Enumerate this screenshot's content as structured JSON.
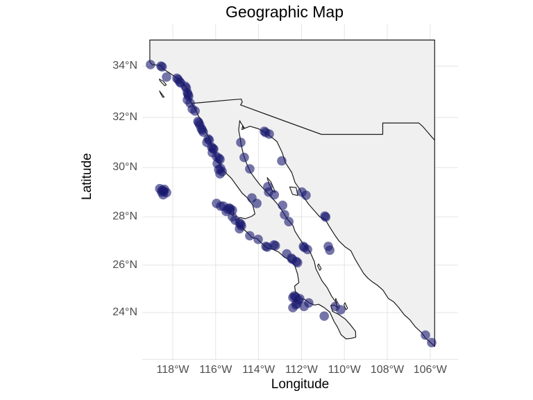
{
  "title": "Geographic Map",
  "axes": {
    "x": {
      "label": "Longitude",
      "ticks": [
        {
          "lon": -118,
          "label": "118°W"
        },
        {
          "lon": -116,
          "label": "116°W"
        },
        {
          "lon": -114,
          "label": "114°W"
        },
        {
          "lon": -112,
          "label": "112°W"
        },
        {
          "lon": -110,
          "label": "110°W"
        },
        {
          "lon": -108,
          "label": "108°W"
        },
        {
          "lon": -106,
          "label": "106°W"
        }
      ]
    },
    "y": {
      "label": "Latitude",
      "ticks": [
        {
          "lat": 34,
          "label": "34°N"
        },
        {
          "lat": 32,
          "label": "32°N"
        },
        {
          "lat": 30,
          "label": "30°N"
        },
        {
          "lat": 28,
          "label": "28°N"
        },
        {
          "lat": 26,
          "label": "26°N"
        },
        {
          "lat": 24,
          "label": "24°N"
        }
      ]
    },
    "unlabeled_gridlines": {
      "lat": [
        22
      ],
      "lon": []
    }
  },
  "style": {
    "point_color": "#191970",
    "point_opacity": 0.6,
    "point_radius": 6.8,
    "land_fill": "#f0f0f0",
    "coast_color": "#1b1b1b",
    "grid_color": "#e4e4e4",
    "tick_label_color": "#4d4d4d",
    "background": "#ffffff"
  },
  "chart_data": {
    "type": "scatter",
    "title": "Geographic Map",
    "xlabel": "Longitude",
    "ylabel": "Latitude",
    "projection": "mercator",
    "lon_range": [
      -119.4,
      -104.7
    ],
    "lat_range": [
      21.9,
      35.6
    ],
    "grid": true,
    "legend": false,
    "points_lonlat": [
      [
        -119.04,
        34.06
      ],
      [
        -118.55,
        34.0
      ],
      [
        -118.5,
        33.97
      ],
      [
        -118.29,
        33.58
      ],
      [
        -117.81,
        33.53
      ],
      [
        -117.75,
        33.48
      ],
      [
        -117.68,
        33.39
      ],
      [
        -117.63,
        33.35
      ],
      [
        -117.42,
        33.22
      ],
      [
        -117.37,
        33.15
      ],
      [
        -117.32,
        32.97
      ],
      [
        -117.29,
        32.9
      ],
      [
        -117.26,
        32.83
      ],
      [
        -117.32,
        32.69
      ],
      [
        -117.19,
        32.56
      ],
      [
        -117.09,
        32.33
      ],
      [
        -116.96,
        32.25
      ],
      [
        -116.83,
        31.84
      ],
      [
        -116.79,
        31.79
      ],
      [
        -116.74,
        31.7
      ],
      [
        -116.67,
        31.56
      ],
      [
        -116.63,
        31.5
      ],
      [
        -116.58,
        31.42
      ],
      [
        -116.35,
        31.15
      ],
      [
        -116.3,
        31.1
      ],
      [
        -116.41,
        31.01
      ],
      [
        -116.19,
        30.82
      ],
      [
        -116.13,
        30.77
      ],
      [
        -116.09,
        30.74
      ],
      [
        -116.16,
        30.6
      ],
      [
        -115.96,
        30.44
      ],
      [
        -115.85,
        30.38
      ],
      [
        -115.8,
        30.33
      ],
      [
        -115.93,
        30.16
      ],
      [
        -115.77,
        29.97
      ],
      [
        -115.7,
        29.84
      ],
      [
        -115.86,
        29.92
      ],
      [
        -115.8,
        29.75
      ],
      [
        -118.61,
        29.15
      ],
      [
        -118.39,
        29.12
      ],
      [
        -118.52,
        29.01
      ],
      [
        -118.29,
        28.99
      ],
      [
        -118.45,
        28.9
      ],
      [
        -118.5,
        29.08
      ],
      [
        -118.42,
        29.04
      ],
      [
        -115.96,
        28.55
      ],
      [
        -115.77,
        28.44
      ],
      [
        -115.64,
        28.44
      ],
      [
        -115.38,
        28.36
      ],
      [
        -115.32,
        28.33
      ],
      [
        -115.44,
        28.31
      ],
      [
        -115.22,
        28.27
      ],
      [
        -115.51,
        28.22
      ],
      [
        -115.22,
        28.0
      ],
      [
        -115.09,
        27.86
      ],
      [
        -114.89,
        27.74
      ],
      [
        -114.83,
        27.7
      ],
      [
        -114.8,
        27.62
      ],
      [
        -114.89,
        27.51
      ],
      [
        -114.41,
        27.22
      ],
      [
        -114.02,
        27.07
      ],
      [
        -113.66,
        26.78
      ],
      [
        -113.6,
        26.75
      ],
      [
        -113.28,
        26.84
      ],
      [
        -113.22,
        26.81
      ],
      [
        -112.69,
        26.47
      ],
      [
        -112.47,
        26.29
      ],
      [
        -112.42,
        26.24
      ],
      [
        -112.24,
        26.15
      ],
      [
        -112.18,
        26.1
      ],
      [
        -112.34,
        24.71
      ],
      [
        -112.28,
        24.66
      ],
      [
        -112.4,
        24.64
      ],
      [
        -112.08,
        24.59
      ],
      [
        -112.14,
        24.53
      ],
      [
        -112.21,
        24.38
      ],
      [
        -112.27,
        24.33
      ],
      [
        -111.88,
        24.26
      ],
      [
        -111.66,
        24.41
      ],
      [
        -112.4,
        24.21
      ],
      [
        -110.94,
        23.85
      ],
      [
        -110.42,
        24.26
      ],
      [
        -110.17,
        24.12
      ],
      [
        -114.83,
        31.01
      ],
      [
        -114.67,
        30.41
      ],
      [
        -114.41,
        29.95
      ],
      [
        -113.73,
        31.45
      ],
      [
        -113.67,
        31.4
      ],
      [
        -113.5,
        31.34
      ],
      [
        -113.57,
        29.23
      ],
      [
        -114.08,
        28.55
      ],
      [
        -113.53,
        29.01
      ],
      [
        -113.27,
        28.9
      ],
      [
        -112.88,
        28.47
      ],
      [
        -114.31,
        28.77
      ],
      [
        -112.92,
        30.27
      ],
      [
        -112.79,
        28.09
      ],
      [
        -112.59,
        27.8
      ],
      [
        -111.98,
        29.01
      ],
      [
        -111.79,
        28.88
      ],
      [
        -110.91,
        28.03
      ],
      [
        -110.87,
        27.99
      ],
      [
        -110.75,
        26.78
      ],
      [
        -111.91,
        26.78
      ],
      [
        -111.86,
        26.73
      ],
      [
        -111.72,
        26.65
      ],
      [
        -110.68,
        26.62
      ],
      [
        -106.22,
        23.04
      ],
      [
        -105.93,
        22.72
      ]
    ],
    "basemap": {
      "land": [
        [
          -119.07,
          35.0
        ],
        [
          -105.79,
          35.0
        ],
        [
          -105.79,
          22.55
        ],
        [
          -105.95,
          22.7
        ],
        [
          -106.2,
          22.9
        ],
        [
          -106.4,
          23.15
        ],
        [
          -106.7,
          23.4
        ],
        [
          -106.95,
          23.7
        ],
        [
          -107.2,
          23.9
        ],
        [
          -107.5,
          24.25
        ],
        [
          -107.7,
          24.45
        ],
        [
          -107.95,
          24.6
        ],
        [
          -108.2,
          24.95
        ],
        [
          -108.45,
          25.15
        ],
        [
          -108.7,
          25.3
        ],
        [
          -108.9,
          25.45
        ],
        [
          -109.1,
          25.65
        ],
        [
          -109.3,
          25.95
        ],
        [
          -109.5,
          26.25
        ],
        [
          -109.7,
          26.6
        ],
        [
          -109.95,
          26.75
        ],
        [
          -110.25,
          27.0
        ],
        [
          -110.45,
          27.25
        ],
        [
          -110.7,
          27.6
        ],
        [
          -110.9,
          27.9
        ],
        [
          -111.15,
          28.0
        ],
        [
          -111.4,
          28.25
        ],
        [
          -111.65,
          28.5
        ],
        [
          -111.9,
          28.8
        ],
        [
          -112.1,
          29.15
        ],
        [
          -112.3,
          29.4
        ],
        [
          -112.45,
          29.8
        ],
        [
          -112.75,
          30.2
        ],
        [
          -112.9,
          30.6
        ],
        [
          -113.15,
          31.05
        ],
        [
          -113.6,
          31.35
        ],
        [
          -114.0,
          31.55
        ],
        [
          -114.4,
          31.65
        ],
        [
          -114.65,
          31.57
        ],
        [
          -114.8,
          31.75
        ],
        [
          -114.88,
          31.87
        ],
        [
          -114.93,
          31.5
        ],
        [
          -114.85,
          31.15
        ],
        [
          -114.82,
          30.95
        ],
        [
          -114.7,
          30.5
        ],
        [
          -114.55,
          30.15
        ],
        [
          -114.38,
          29.82
        ],
        [
          -114.18,
          29.58
        ],
        [
          -113.95,
          29.32
        ],
        [
          -113.72,
          29.1
        ],
        [
          -113.55,
          28.95
        ],
        [
          -113.35,
          28.75
        ],
        [
          -113.1,
          28.5
        ],
        [
          -112.9,
          28.25
        ],
        [
          -112.65,
          27.9
        ],
        [
          -112.4,
          27.65
        ],
        [
          -112.3,
          27.4
        ],
        [
          -112.05,
          27.05
        ],
        [
          -111.85,
          26.8
        ],
        [
          -111.6,
          26.55
        ],
        [
          -111.4,
          26.15
        ],
        [
          -111.33,
          25.85
        ],
        [
          -111.05,
          25.35
        ],
        [
          -110.8,
          25.05
        ],
        [
          -110.6,
          24.7
        ],
        [
          -110.4,
          24.45
        ],
        [
          -110.33,
          24.22
        ],
        [
          -110.48,
          24.32
        ],
        [
          -110.63,
          24.3
        ],
        [
          -110.55,
          24.05
        ],
        [
          -110.28,
          23.93
        ],
        [
          -109.95,
          23.72
        ],
        [
          -109.72,
          23.48
        ],
        [
          -109.48,
          23.2
        ],
        [
          -109.47,
          22.95
        ],
        [
          -109.7,
          22.9
        ],
        [
          -109.92,
          22.88
        ],
        [
          -110.15,
          23.05
        ],
        [
          -110.32,
          23.38
        ],
        [
          -110.48,
          23.62
        ],
        [
          -110.68,
          24.02
        ],
        [
          -110.95,
          24.22
        ],
        [
          -111.2,
          24.35
        ],
        [
          -111.4,
          24.32
        ],
        [
          -111.65,
          24.42
        ],
        [
          -111.87,
          24.57
        ],
        [
          -112.07,
          24.57
        ],
        [
          -112.12,
          24.77
        ],
        [
          -112.28,
          24.87
        ],
        [
          -112.32,
          25.12
        ],
        [
          -112.12,
          25.27
        ],
        [
          -112.18,
          25.62
        ],
        [
          -112.32,
          26.0
        ],
        [
          -112.55,
          26.2
        ],
        [
          -112.82,
          26.35
        ],
        [
          -113.07,
          26.55
        ],
        [
          -113.32,
          26.65
        ],
        [
          -113.62,
          26.72
        ],
        [
          -113.87,
          26.92
        ],
        [
          -114.07,
          27.1
        ],
        [
          -114.32,
          27.15
        ],
        [
          -114.52,
          27.35
        ],
        [
          -114.72,
          27.5
        ],
        [
          -114.92,
          27.67
        ],
        [
          -115.07,
          27.87
        ],
        [
          -114.87,
          27.97
        ],
        [
          -114.62,
          27.92
        ],
        [
          -114.32,
          28.02
        ],
        [
          -114.17,
          28.12
        ],
        [
          -114.27,
          28.47
        ],
        [
          -114.52,
          28.77
        ],
        [
          -114.77,
          28.97
        ],
        [
          -115.02,
          29.27
        ],
        [
          -115.27,
          29.57
        ],
        [
          -115.57,
          29.82
        ],
        [
          -115.77,
          30.07
        ],
        [
          -115.97,
          30.37
        ],
        [
          -116.12,
          30.72
        ],
        [
          -116.22,
          30.97
        ],
        [
          -116.32,
          31.22
        ],
        [
          -116.57,
          31.57
        ],
        [
          -116.67,
          31.87
        ],
        [
          -116.82,
          32.07
        ],
        [
          -116.92,
          32.27
        ],
        [
          -117.06,
          32.47
        ],
        [
          -117.13,
          32.55
        ],
        [
          -117.25,
          32.72
        ],
        [
          -117.29,
          32.87
        ],
        [
          -117.33,
          33.12
        ],
        [
          -117.52,
          33.32
        ],
        [
          -117.77,
          33.52
        ],
        [
          -117.97,
          33.63
        ],
        [
          -118.22,
          33.77
        ],
        [
          -118.42,
          33.87
        ],
        [
          -118.57,
          34.03
        ],
        [
          -118.77,
          34.04
        ],
        [
          -118.97,
          34.06
        ],
        [
          -119.07,
          34.16
        ]
      ],
      "border_line": [
        [
          -117.13,
          32.55
        ],
        [
          -116.2,
          32.62
        ],
        [
          -115.3,
          32.69
        ],
        [
          -114.81,
          32.72
        ],
        [
          -114.76,
          32.6
        ],
        [
          -114.84,
          32.49
        ],
        [
          -113.7,
          32.14
        ],
        [
          -112.5,
          31.77
        ],
        [
          -111.07,
          31.33
        ],
        [
          -108.21,
          31.33
        ],
        [
          -108.21,
          31.78
        ],
        [
          -106.53,
          31.78
        ],
        [
          -106.33,
          31.63
        ],
        [
          -106.1,
          31.4
        ],
        [
          -105.9,
          31.2
        ],
        [
          -105.79,
          31.1
        ]
      ],
      "islands": {
        "santa_catalina": [
          [
            -118.63,
            33.5
          ],
          [
            -118.45,
            33.42
          ],
          [
            -118.3,
            33.28
          ],
          [
            -118.38,
            33.24
          ],
          [
            -118.52,
            33.36
          ],
          [
            -118.6,
            33.44
          ]
        ],
        "san_clemente": [
          [
            -118.62,
            33.04
          ],
          [
            -118.5,
            32.9
          ],
          [
            -118.4,
            32.8
          ],
          [
            -118.47,
            32.79
          ],
          [
            -118.57,
            32.94
          ]
        ],
        "guadalupe": [
          [
            -118.33,
            29.2
          ],
          [
            -118.25,
            29.05
          ],
          [
            -118.3,
            28.95
          ],
          [
            -118.37,
            29.1
          ]
        ],
        "cedros": [
          [
            -115.33,
            28.4
          ],
          [
            -115.15,
            28.33
          ],
          [
            -115.18,
            28.05
          ],
          [
            -115.33,
            28.12
          ]
        ],
        "angel_de_la_guarda": [
          [
            -113.6,
            29.6
          ],
          [
            -113.42,
            29.42
          ],
          [
            -113.22,
            29.0
          ],
          [
            -113.35,
            29.05
          ],
          [
            -113.52,
            29.35
          ]
        ],
        "tiburon": [
          [
            -112.55,
            29.22
          ],
          [
            -112.25,
            29.2
          ],
          [
            -112.17,
            28.87
          ],
          [
            -112.42,
            28.92
          ]
        ],
        "carmen": [
          [
            -111.2,
            26.05
          ],
          [
            -111.08,
            25.85
          ],
          [
            -111.15,
            25.78
          ],
          [
            -111.25,
            25.98
          ]
        ],
        "espiritu_santo": [
          [
            -110.4,
            24.6
          ],
          [
            -110.32,
            24.42
          ],
          [
            -110.42,
            24.47
          ]
        ],
        "cerralvo": [
          [
            -109.97,
            24.42
          ],
          [
            -109.85,
            24.18
          ],
          [
            -109.93,
            24.12
          ],
          [
            -110.02,
            24.33
          ]
        ],
        "montague": [
          [
            -114.75,
            31.65
          ],
          [
            -114.68,
            31.55
          ],
          [
            -114.78,
            31.52
          ]
        ]
      }
    }
  }
}
